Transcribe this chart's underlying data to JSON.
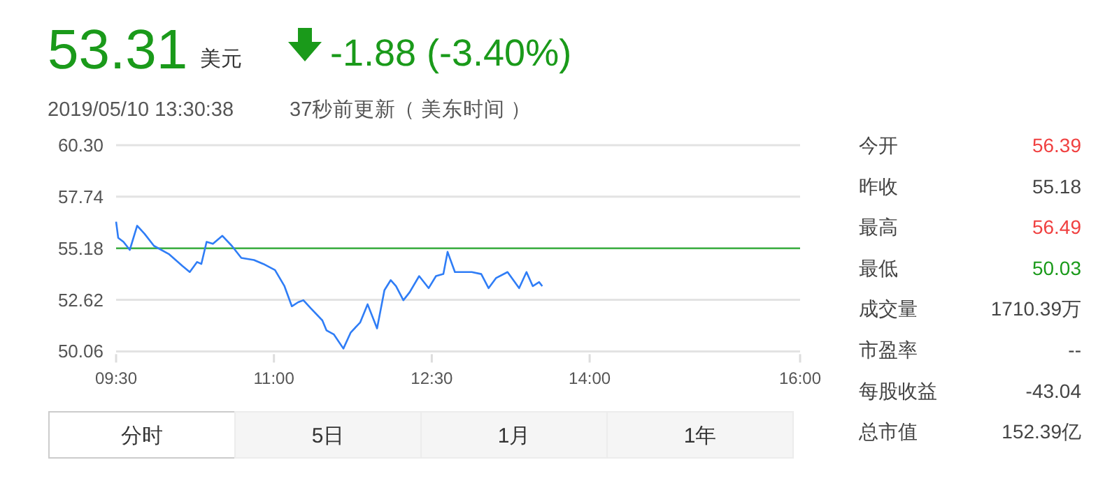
{
  "chart_data": [
    {
      "type": "line",
      "color": "#2f7df6",
      "grid": "y",
      "marker": "none",
      "line_style": "solid",
      "x": [
        9.5,
        9.52,
        9.57,
        9.63,
        9.7,
        9.77,
        9.86,
        10.0,
        10.13,
        10.2,
        10.27,
        10.31,
        10.36,
        10.42,
        10.51,
        10.6,
        10.69,
        10.81,
        10.9,
        11.01,
        11.1,
        11.17,
        11.23,
        11.28,
        11.35,
        11.46,
        11.5,
        11.57,
        11.66,
        11.73,
        11.82,
        11.89,
        11.98,
        12.05,
        12.11,
        12.16,
        12.23,
        12.29,
        12.38,
        12.47,
        12.54,
        12.61,
        12.65,
        12.72,
        12.88,
        12.97,
        13.04,
        13.11,
        13.22,
        13.33,
        13.4,
        13.46,
        13.52,
        13.55
      ],
      "values": [
        56.5,
        55.7,
        55.5,
        55.1,
        56.3,
        55.9,
        55.3,
        54.9,
        54.3,
        54.0,
        54.5,
        54.4,
        55.5,
        55.4,
        55.8,
        55.3,
        54.7,
        54.6,
        54.4,
        54.1,
        53.3,
        52.3,
        52.5,
        52.6,
        52.2,
        51.6,
        51.1,
        50.9,
        50.2,
        51.0,
        51.5,
        52.4,
        51.2,
        53.1,
        53.6,
        53.3,
        52.6,
        53.0,
        53.8,
        53.2,
        53.8,
        53.9,
        55.0,
        54.0,
        54.0,
        53.9,
        53.2,
        53.7,
        54.0,
        53.2,
        54.0,
        53.3,
        53.5,
        53.3
      ],
      "ylim": [
        50.06,
        60.3
      ],
      "yticks": [
        50.06,
        52.62,
        55.18,
        57.74,
        {
          "value": 60.3,
          "label": "60.30"
        }
      ],
      "xlim": [
        9.5,
        16
      ],
      "xticks": [
        {
          "value": 9.5,
          "label": "09:30"
        },
        {
          "value": 11,
          "label": "11:00"
        },
        {
          "value": 12.5,
          "label": "12:30"
        },
        {
          "value": 14,
          "label": "14:00"
        },
        {
          "value": 16,
          "label": "16:00"
        }
      ],
      "ref_lines": [
        {
          "axis": "y",
          "value": 55.18,
          "color": "#3cb043"
        }
      ]
    },
    {
      "type": "other",
      "annotations": [
        "53.31",
        "美元",
        "-1.88 (-3.40%)",
        "2019/05/10 13:30:38",
        "37秒前更新",
        "（ 美东时间 ）",
        "今开",
        "56.39",
        "昨收",
        "55.18",
        "最高",
        "56.49",
        "最低",
        "50.03",
        "成交量",
        "1710.39万",
        "市盈率",
        "--",
        "每股收益",
        "-43.04",
        "总市值",
        "152.39亿",
        "分时",
        "5日",
        "1月",
        "1年"
      ]
    }
  ]
}
